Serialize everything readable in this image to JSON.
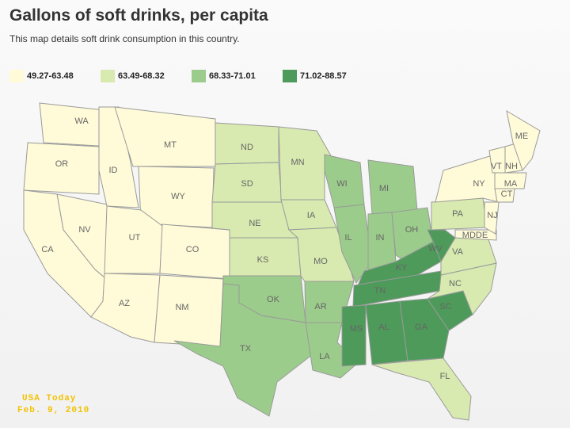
{
  "title": "Gallons of soft drinks, per capita",
  "subtitle": "This map details soft drink consumption in this country.",
  "legend": [
    {
      "label": "49.27-63.48",
      "color": "#fffbd8"
    },
    {
      "label": "63.49-68.32",
      "color": "#d8eab0"
    },
    {
      "label": "68.33-71.01",
      "color": "#9ccc8b"
    },
    {
      "label": "71.02-88.57",
      "color": "#4d9a5a"
    }
  ],
  "states": [
    {
      "label": "WA",
      "class": 0
    },
    {
      "label": "OR",
      "class": 0
    },
    {
      "label": "NV",
      "class": 0
    },
    {
      "label": "CA",
      "class": 0
    },
    {
      "label": "ID",
      "class": 0
    },
    {
      "label": "MT",
      "class": 0
    },
    {
      "label": "WY",
      "class": 0
    },
    {
      "label": "UT",
      "class": 0
    },
    {
      "label": "CO",
      "class": 0
    },
    {
      "label": "AZ",
      "class": 0
    },
    {
      "label": "NM",
      "class": 0
    },
    {
      "label": "ND",
      "class": 1
    },
    {
      "label": "SD",
      "class": 1
    },
    {
      "label": "NE",
      "class": 1
    },
    {
      "label": "KS",
      "class": 1
    },
    {
      "label": "OK",
      "class": 2
    },
    {
      "label": "TX",
      "class": 2
    },
    {
      "label": "MN",
      "class": 1
    },
    {
      "label": "IA",
      "class": 1
    },
    {
      "label": "MO",
      "class": 1
    },
    {
      "label": "AR",
      "class": 2
    },
    {
      "label": "LA",
      "class": 2
    },
    {
      "label": "WI",
      "class": 2
    },
    {
      "label": "IL",
      "class": 2
    },
    {
      "label": "MI",
      "class": 2
    },
    {
      "label": "IN",
      "class": 2
    },
    {
      "label": "OH",
      "class": 2
    },
    {
      "label": "KY",
      "class": 3
    },
    {
      "label": "TN",
      "class": 3
    },
    {
      "label": "MS",
      "class": 3
    },
    {
      "label": "AL",
      "class": 3
    },
    {
      "label": "GA",
      "class": 3
    },
    {
      "label": "FL",
      "class": 1
    },
    {
      "label": "SC",
      "class": 3
    },
    {
      "label": "NC",
      "class": 1
    },
    {
      "label": "VA",
      "class": 1
    },
    {
      "label": "WV",
      "class": 3
    },
    {
      "label": "PA",
      "class": 1
    },
    {
      "label": "NY",
      "class": 0
    },
    {
      "label": "MDDE",
      "class": 0
    },
    {
      "label": "NJ",
      "class": 0
    },
    {
      "label": "VT",
      "class": 0
    },
    {
      "label": "NH",
      "class": 0
    },
    {
      "label": "ME",
      "class": 0
    },
    {
      "label": "MA",
      "class": 0
    },
    {
      "label": "CT",
      "class": 0
    }
  ],
  "source": "USA Today",
  "date": "Feb. 9, 2010"
}
